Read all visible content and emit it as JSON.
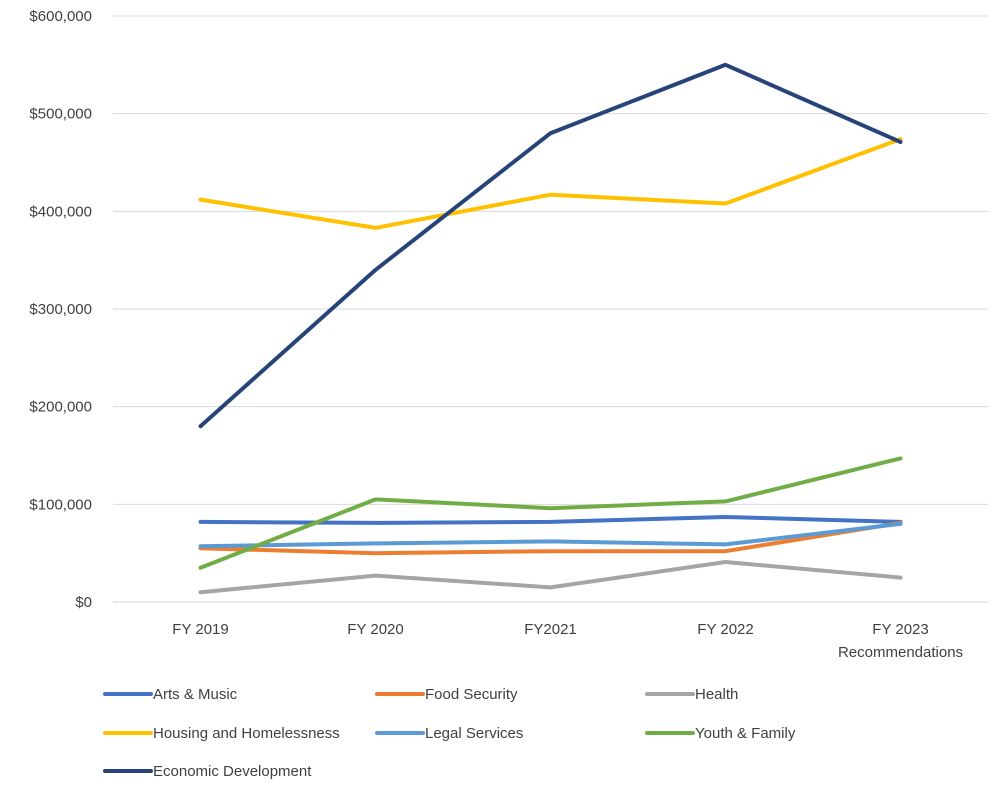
{
  "chart_data": {
    "type": "line",
    "title": "",
    "xlabel": "",
    "ylabel": "",
    "categories": [
      "FY 2019",
      "FY 2020",
      "FY2021",
      "FY 2022",
      "FY 2023 Recommendations"
    ],
    "category_lines": [
      [
        "FY 2019"
      ],
      [
        "FY 2020"
      ],
      [
        "FY2021"
      ],
      [
        "FY 2022"
      ],
      [
        "FY 2023",
        "Recommendations"
      ]
    ],
    "ylim": [
      0,
      600000
    ],
    "yticks": [
      0,
      100000,
      200000,
      300000,
      400000,
      500000,
      600000
    ],
    "ytick_labels": [
      "$0",
      "$100,000",
      "$200,000",
      "$300,000",
      "$400,000",
      "$500,000",
      "$600,000"
    ],
    "grid": true,
    "legend_position": "bottom",
    "series": [
      {
        "name": "Arts & Music",
        "color": "#4472C4",
        "values": [
          82000,
          81000,
          82000,
          87000,
          82000
        ]
      },
      {
        "name": "Food Security",
        "color": "#ED7D31",
        "values": [
          55000,
          50000,
          52000,
          52000,
          81000
        ]
      },
      {
        "name": "Health",
        "color": "#A5A5A5",
        "values": [
          10000,
          27000,
          15000,
          41000,
          25000
        ]
      },
      {
        "name": "Housing and Homelessness",
        "color": "#FFC000",
        "values": [
          412000,
          383000,
          417000,
          408000,
          474000
        ]
      },
      {
        "name": "Legal Services",
        "color": "#5B9BD5",
        "values": [
          57000,
          60000,
          62000,
          59000,
          80000
        ]
      },
      {
        "name": "Youth & Family",
        "color": "#70AD47",
        "values": [
          35000,
          105000,
          96000,
          103000,
          147000
        ]
      },
      {
        "name": "Economic Development",
        "color": "#264478",
        "values": [
          180000,
          340000,
          480000,
          550000,
          471000
        ]
      }
    ]
  }
}
